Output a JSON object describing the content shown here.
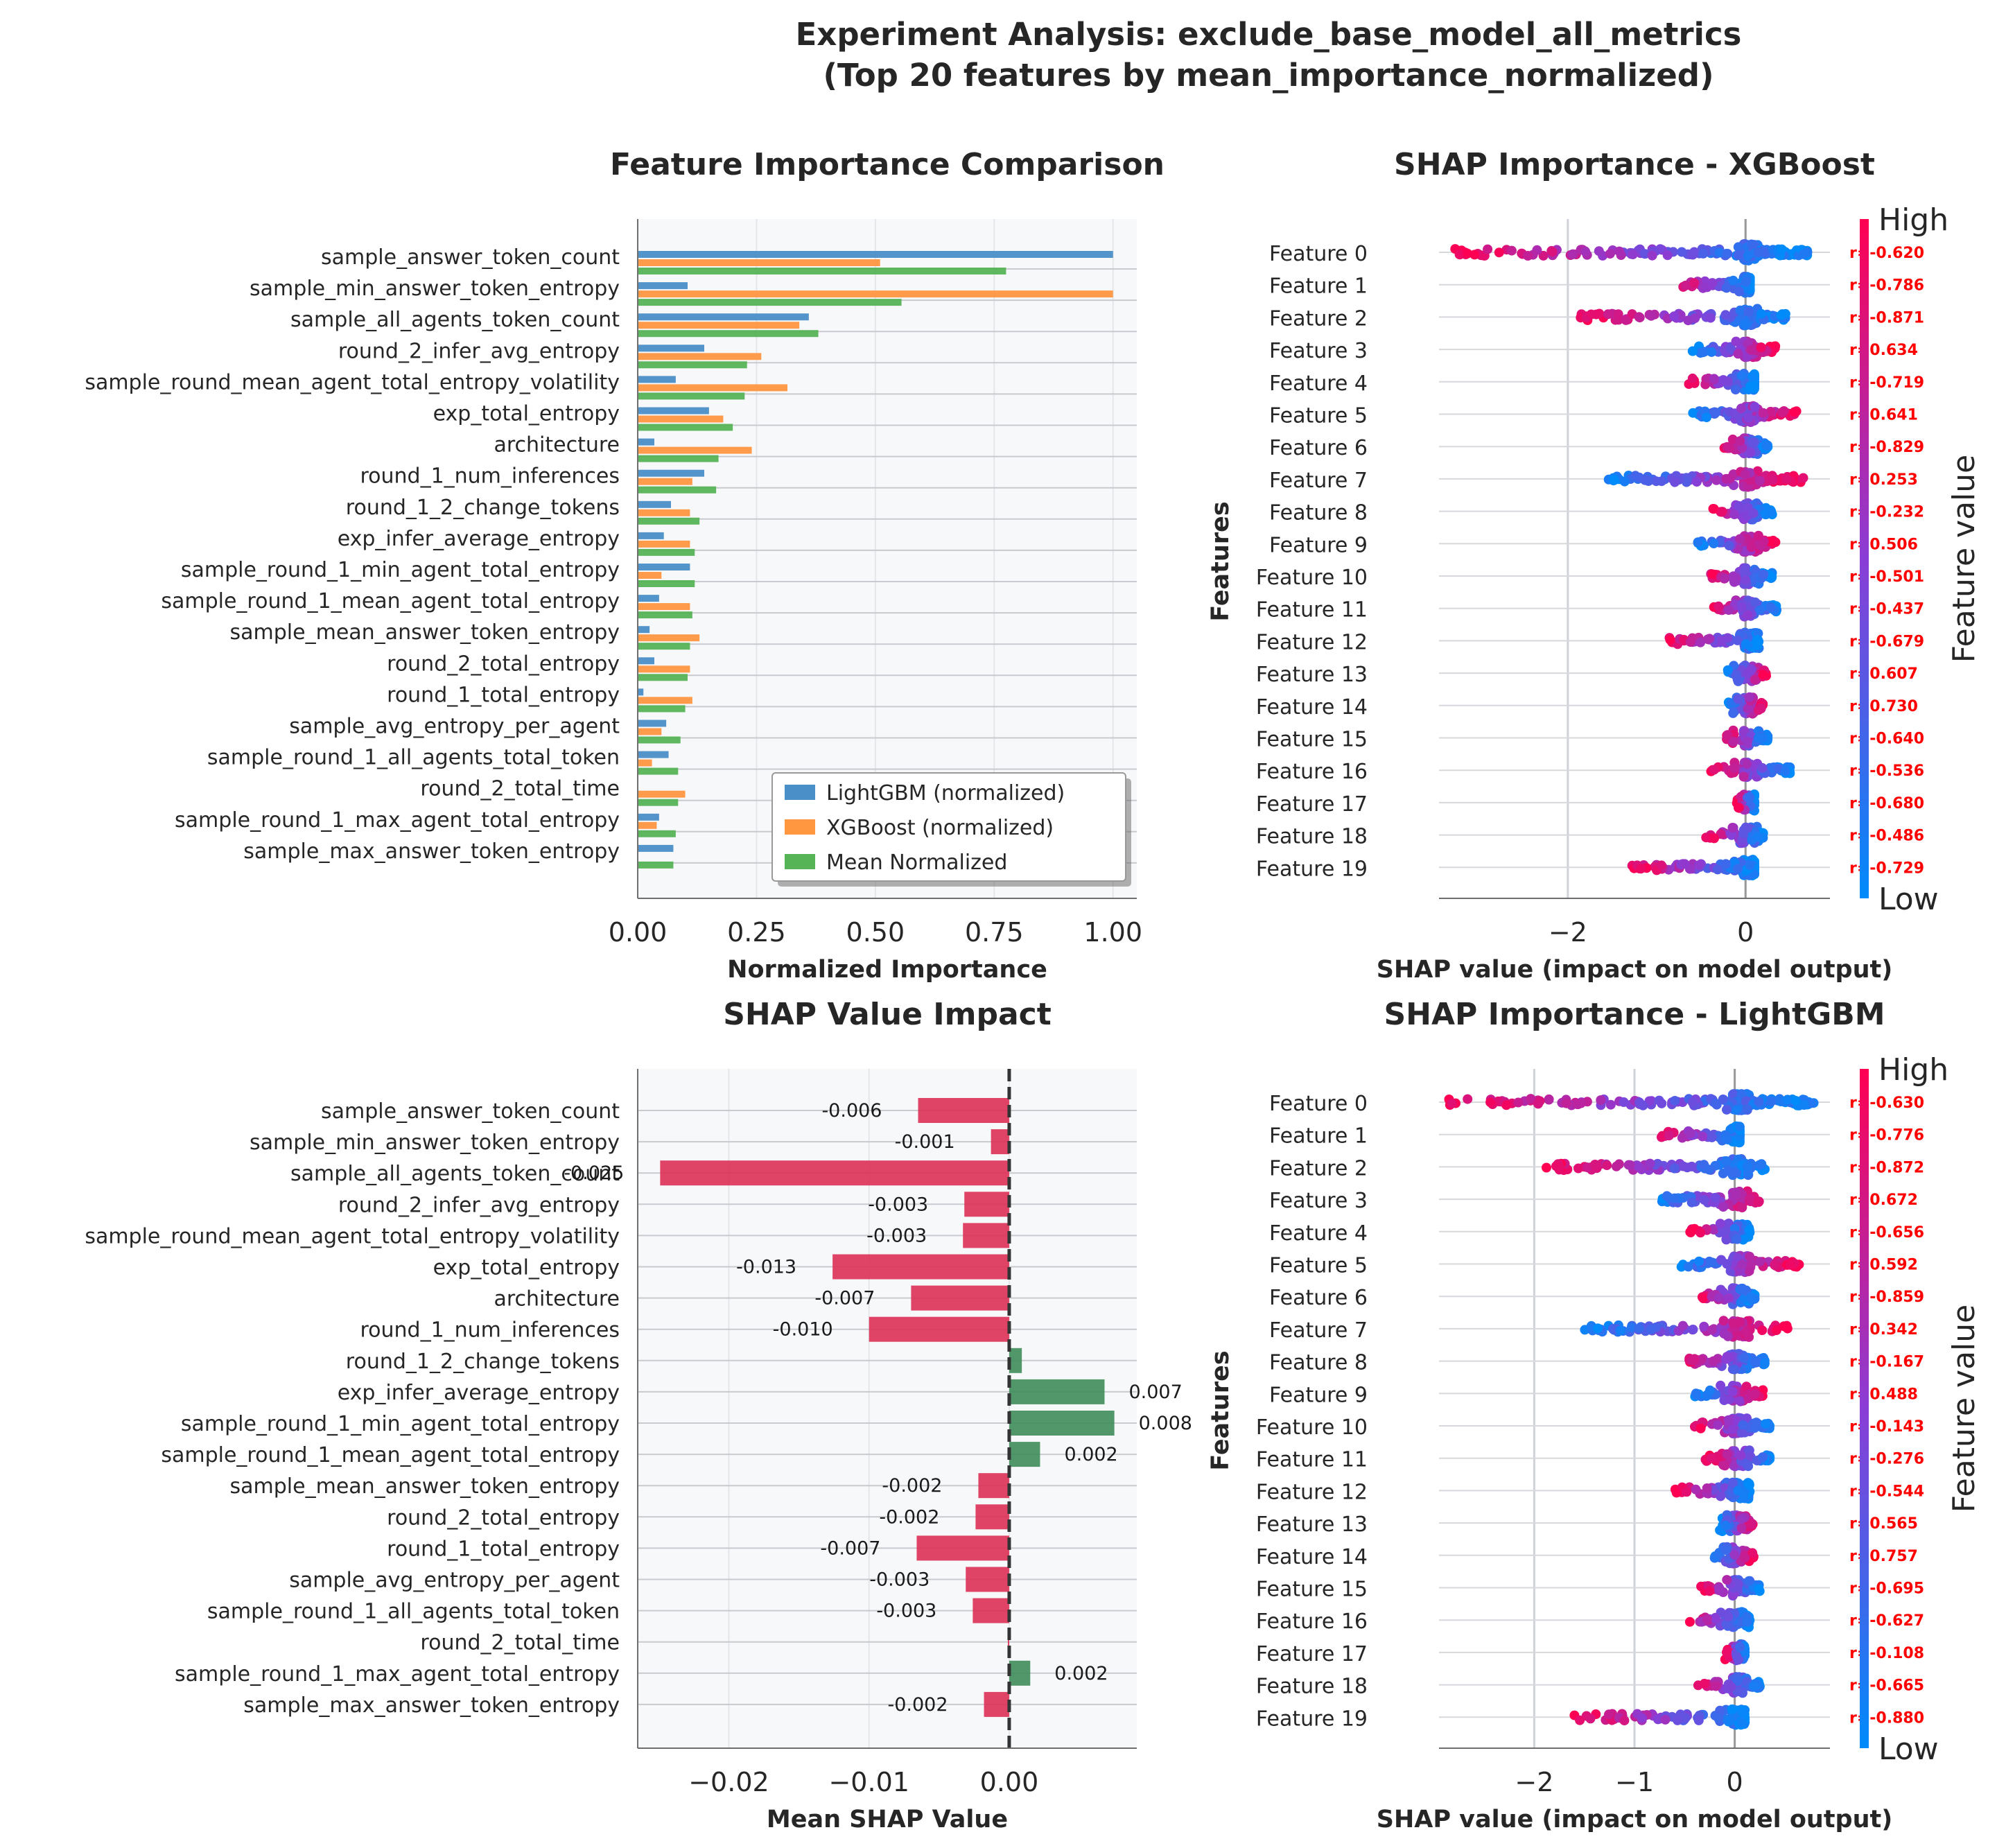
{
  "figure": {
    "title_line1": "Experiment Analysis: exclude_base_model_all_metrics",
    "title_line2": "(Top 20 features by mean_importance_normalized)"
  },
  "colors": {
    "lightgbm": "#4a8fc7",
    "xgboost": "#ff9640",
    "mean": "#56b356",
    "negative": "#dc3055",
    "positive": "#3e8c5a",
    "shap_high": "#ff0052",
    "shap_low": "#008bfb",
    "axes_bg": "#f7f8fa",
    "grid": "#d0d2d6"
  },
  "chart_data": [
    {
      "id": "importance",
      "type": "bar",
      "orientation": "horizontal",
      "title": "Feature Importance Comparison",
      "xlabel": "Normalized Importance",
      "ylabel": "",
      "xlim": [
        0.0,
        1.05
      ],
      "xticks": [
        "0.00",
        "0.25",
        "0.50",
        "0.75",
        "1.00"
      ],
      "xtick_values": [
        0,
        0.25,
        0.5,
        0.75,
        1.0
      ],
      "legend_position": "lower-right",
      "categories": [
        "sample_answer_token_count",
        "sample_min_answer_token_entropy",
        "sample_all_agents_token_count",
        "round_2_infer_avg_entropy",
        "sample_round_mean_agent_total_entropy_volatility",
        "exp_total_entropy",
        "architecture",
        "round_1_num_inferences",
        "round_1_2_change_tokens",
        "exp_infer_average_entropy",
        "sample_round_1_min_agent_total_entropy",
        "sample_round_1_mean_agent_total_entropy",
        "sample_mean_answer_token_entropy",
        "round_2_total_entropy",
        "round_1_total_entropy",
        "sample_avg_entropy_per_agent",
        "sample_round_1_all_agents_total_token",
        "round_2_total_time",
        "sample_round_1_max_agent_total_entropy",
        "sample_max_answer_token_entropy"
      ],
      "series": [
        {
          "name": "LightGBM (normalized)",
          "values": [
            1.0,
            0.105,
            0.36,
            0.14,
            0.08,
            0.15,
            0.035,
            0.14,
            0.07,
            0.055,
            0.11,
            0.045,
            0.025,
            0.035,
            0.012,
            0.06,
            0.065,
            0.0,
            0.045,
            0.075
          ]
        },
        {
          "name": "XGBoost (normalized)",
          "values": [
            0.51,
            1.0,
            0.34,
            0.26,
            0.315,
            0.18,
            0.24,
            0.115,
            0.11,
            0.11,
            0.05,
            0.11,
            0.13,
            0.11,
            0.115,
            0.05,
            0.03,
            0.1,
            0.04,
            0.0
          ]
        },
        {
          "name": "Mean Normalized",
          "values": [
            0.775,
            0.555,
            0.38,
            0.23,
            0.225,
            0.2,
            0.17,
            0.165,
            0.13,
            0.12,
            0.12,
            0.115,
            0.11,
            0.105,
            0.1,
            0.09,
            0.085,
            0.085,
            0.08,
            0.075
          ]
        }
      ]
    },
    {
      "id": "shap_impact",
      "type": "bar",
      "orientation": "horizontal",
      "title": "SHAP Value Impact",
      "xlabel": "Mean SHAP Value",
      "ylabel": "",
      "xlim": [
        -0.0265,
        0.0091
      ],
      "xticks": [
        "−0.02",
        "−0.01",
        "0.00"
      ],
      "xtick_values": [
        -0.02,
        -0.01,
        0.0
      ],
      "categories": [
        "sample_answer_token_count",
        "sample_min_answer_token_entropy",
        "sample_all_agents_token_count",
        "round_2_infer_avg_entropy",
        "sample_round_mean_agent_total_entropy_volatility",
        "exp_total_entropy",
        "architecture",
        "round_1_num_inferences",
        "round_1_2_change_tokens",
        "exp_infer_average_entropy",
        "sample_round_1_min_agent_total_entropy",
        "sample_round_1_mean_agent_total_entropy",
        "sample_mean_answer_token_entropy",
        "round_2_total_entropy",
        "round_1_total_entropy",
        "sample_avg_entropy_per_agent",
        "sample_round_1_all_agents_total_token",
        "round_2_total_time",
        "sample_round_1_max_agent_total_entropy",
        "sample_max_answer_token_entropy"
      ],
      "values": [
        -0.0065,
        -0.0013,
        -0.0249,
        -0.0032,
        -0.0033,
        -0.0126,
        -0.007,
        -0.01,
        0.0009,
        0.0068,
        0.0075,
        0.0022,
        -0.0022,
        -0.0024,
        -0.0066,
        -0.0031,
        -0.0026,
        -0.0001,
        0.0015,
        -0.0018
      ],
      "data_labels": [
        "-0.006",
        "-0.001",
        "-0.025",
        "-0.003",
        "-0.003",
        "-0.013",
        "-0.007",
        "-0.010",
        "",
        "0.007",
        "0.008",
        "0.002",
        "-0.002",
        "-0.002",
        "-0.007",
        "-0.003",
        "-0.003",
        "",
        "0.002",
        "-0.002"
      ]
    },
    {
      "id": "shap_xgb",
      "type": "scatter",
      "subtype": "beeswarm",
      "title": "SHAP Importance - XGBoost",
      "xlabel": "SHAP value (impact on model output)",
      "ylabel": "Features",
      "xlim": [
        -3.45,
        0.95
      ],
      "xticks": [
        "−2",
        "0"
      ],
      "xtick_values": [
        -2,
        0
      ],
      "colorbar_label": "Feature value",
      "colorbar_high": "High",
      "colorbar_low": "Low",
      "features": [
        "Feature 0",
        "Feature 1",
        "Feature 2",
        "Feature 3",
        "Feature 4",
        "Feature 5",
        "Feature 6",
        "Feature 7",
        "Feature 8",
        "Feature 9",
        "Feature 10",
        "Feature 11",
        "Feature 12",
        "Feature 13",
        "Feature 14",
        "Feature 15",
        "Feature 16",
        "Feature 17",
        "Feature 18",
        "Feature 19"
      ],
      "ranges": [
        [
          -3.3,
          0.7
        ],
        [
          -0.8,
          0.05
        ],
        [
          -1.9,
          0.45
        ],
        [
          -0.6,
          0.35
        ],
        [
          -0.65,
          0.1
        ],
        [
          -0.6,
          0.6
        ],
        [
          -0.25,
          0.25
        ],
        [
          -1.55,
          0.65
        ],
        [
          -0.4,
          0.3
        ],
        [
          -0.55,
          0.35
        ],
        [
          -0.45,
          0.3
        ],
        [
          -0.4,
          0.35
        ],
        [
          -0.9,
          0.15
        ],
        [
          -0.2,
          0.25
        ],
        [
          -0.2,
          0.2
        ],
        [
          -0.25,
          0.25
        ],
        [
          -0.4,
          0.5
        ],
        [
          -0.1,
          0.1
        ],
        [
          -0.45,
          0.2
        ],
        [
          -1.3,
          0.1
        ]
      ],
      "high_side": [
        "neg",
        "neg",
        "neg",
        "pos",
        "neg",
        "pos",
        "neg",
        "pos",
        "neg",
        "pos",
        "neg",
        "neg",
        "neg",
        "pos",
        "pos",
        "neg",
        "neg",
        "neg",
        "neg",
        "neg"
      ],
      "correlations": [
        "r=-0.620",
        "r=-0.786",
        "r=-0.871",
        "r=0.634",
        "r=-0.719",
        "r=0.641",
        "r=-0.829",
        "r=0.253",
        "r=-0.232",
        "r=0.506",
        "r=-0.501",
        "r=-0.437",
        "r=-0.679",
        "r=0.607",
        "r=0.730",
        "r=-0.640",
        "r=-0.536",
        "r=-0.680",
        "r=-0.486",
        "r=-0.729"
      ]
    },
    {
      "id": "shap_lgbm",
      "type": "scatter",
      "subtype": "beeswarm",
      "title": "SHAP Importance - LightGBM",
      "xlabel": "SHAP value (impact on model output)",
      "ylabel": "Features",
      "xlim": [
        -2.95,
        0.95
      ],
      "xticks": [
        "−2",
        "−1",
        "0"
      ],
      "xtick_values": [
        -2,
        -1,
        0
      ],
      "colorbar_label": "Feature value",
      "colorbar_high": "High",
      "colorbar_low": "Low",
      "features": [
        "Feature 0",
        "Feature 1",
        "Feature 2",
        "Feature 3",
        "Feature 4",
        "Feature 5",
        "Feature 6",
        "Feature 7",
        "Feature 8",
        "Feature 9",
        "Feature 10",
        "Feature 11",
        "Feature 12",
        "Feature 13",
        "Feature 14",
        "Feature 15",
        "Feature 16",
        "Feature 17",
        "Feature 18",
        "Feature 19"
      ],
      "ranges": [
        [
          -2.85,
          0.8
        ],
        [
          -0.75,
          0.05
        ],
        [
          -1.9,
          0.3
        ],
        [
          -0.75,
          0.3
        ],
        [
          -0.45,
          0.15
        ],
        [
          -0.55,
          0.65
        ],
        [
          -0.4,
          0.2
        ],
        [
          -1.5,
          0.6
        ],
        [
          -0.55,
          0.3
        ],
        [
          -0.4,
          0.3
        ],
        [
          -0.4,
          0.35
        ],
        [
          -0.3,
          0.35
        ],
        [
          -0.6,
          0.15
        ],
        [
          -0.15,
          0.2
        ],
        [
          -0.2,
          0.2
        ],
        [
          -0.35,
          0.25
        ],
        [
          -0.5,
          0.15
        ],
        [
          -0.1,
          0.1
        ],
        [
          -0.4,
          0.25
        ],
        [
          -1.6,
          0.1
        ]
      ],
      "high_side": [
        "neg",
        "neg",
        "neg",
        "pos",
        "neg",
        "pos",
        "neg",
        "pos",
        "neg",
        "pos",
        "neg",
        "neg",
        "neg",
        "pos",
        "pos",
        "neg",
        "neg",
        "neg",
        "neg",
        "neg"
      ],
      "correlations": [
        "r=-0.630",
        "r=-0.776",
        "r=-0.872",
        "r=0.672",
        "r=-0.656",
        "r=0.592",
        "r=-0.859",
        "r=0.342",
        "r=-0.167",
        "r=0.488",
        "r=-0.143",
        "r=-0.276",
        "r=-0.544",
        "r=0.565",
        "r=0.757",
        "r=-0.695",
        "r=-0.627",
        "r=-0.108",
        "r=-0.665",
        "r=-0.880"
      ]
    }
  ]
}
